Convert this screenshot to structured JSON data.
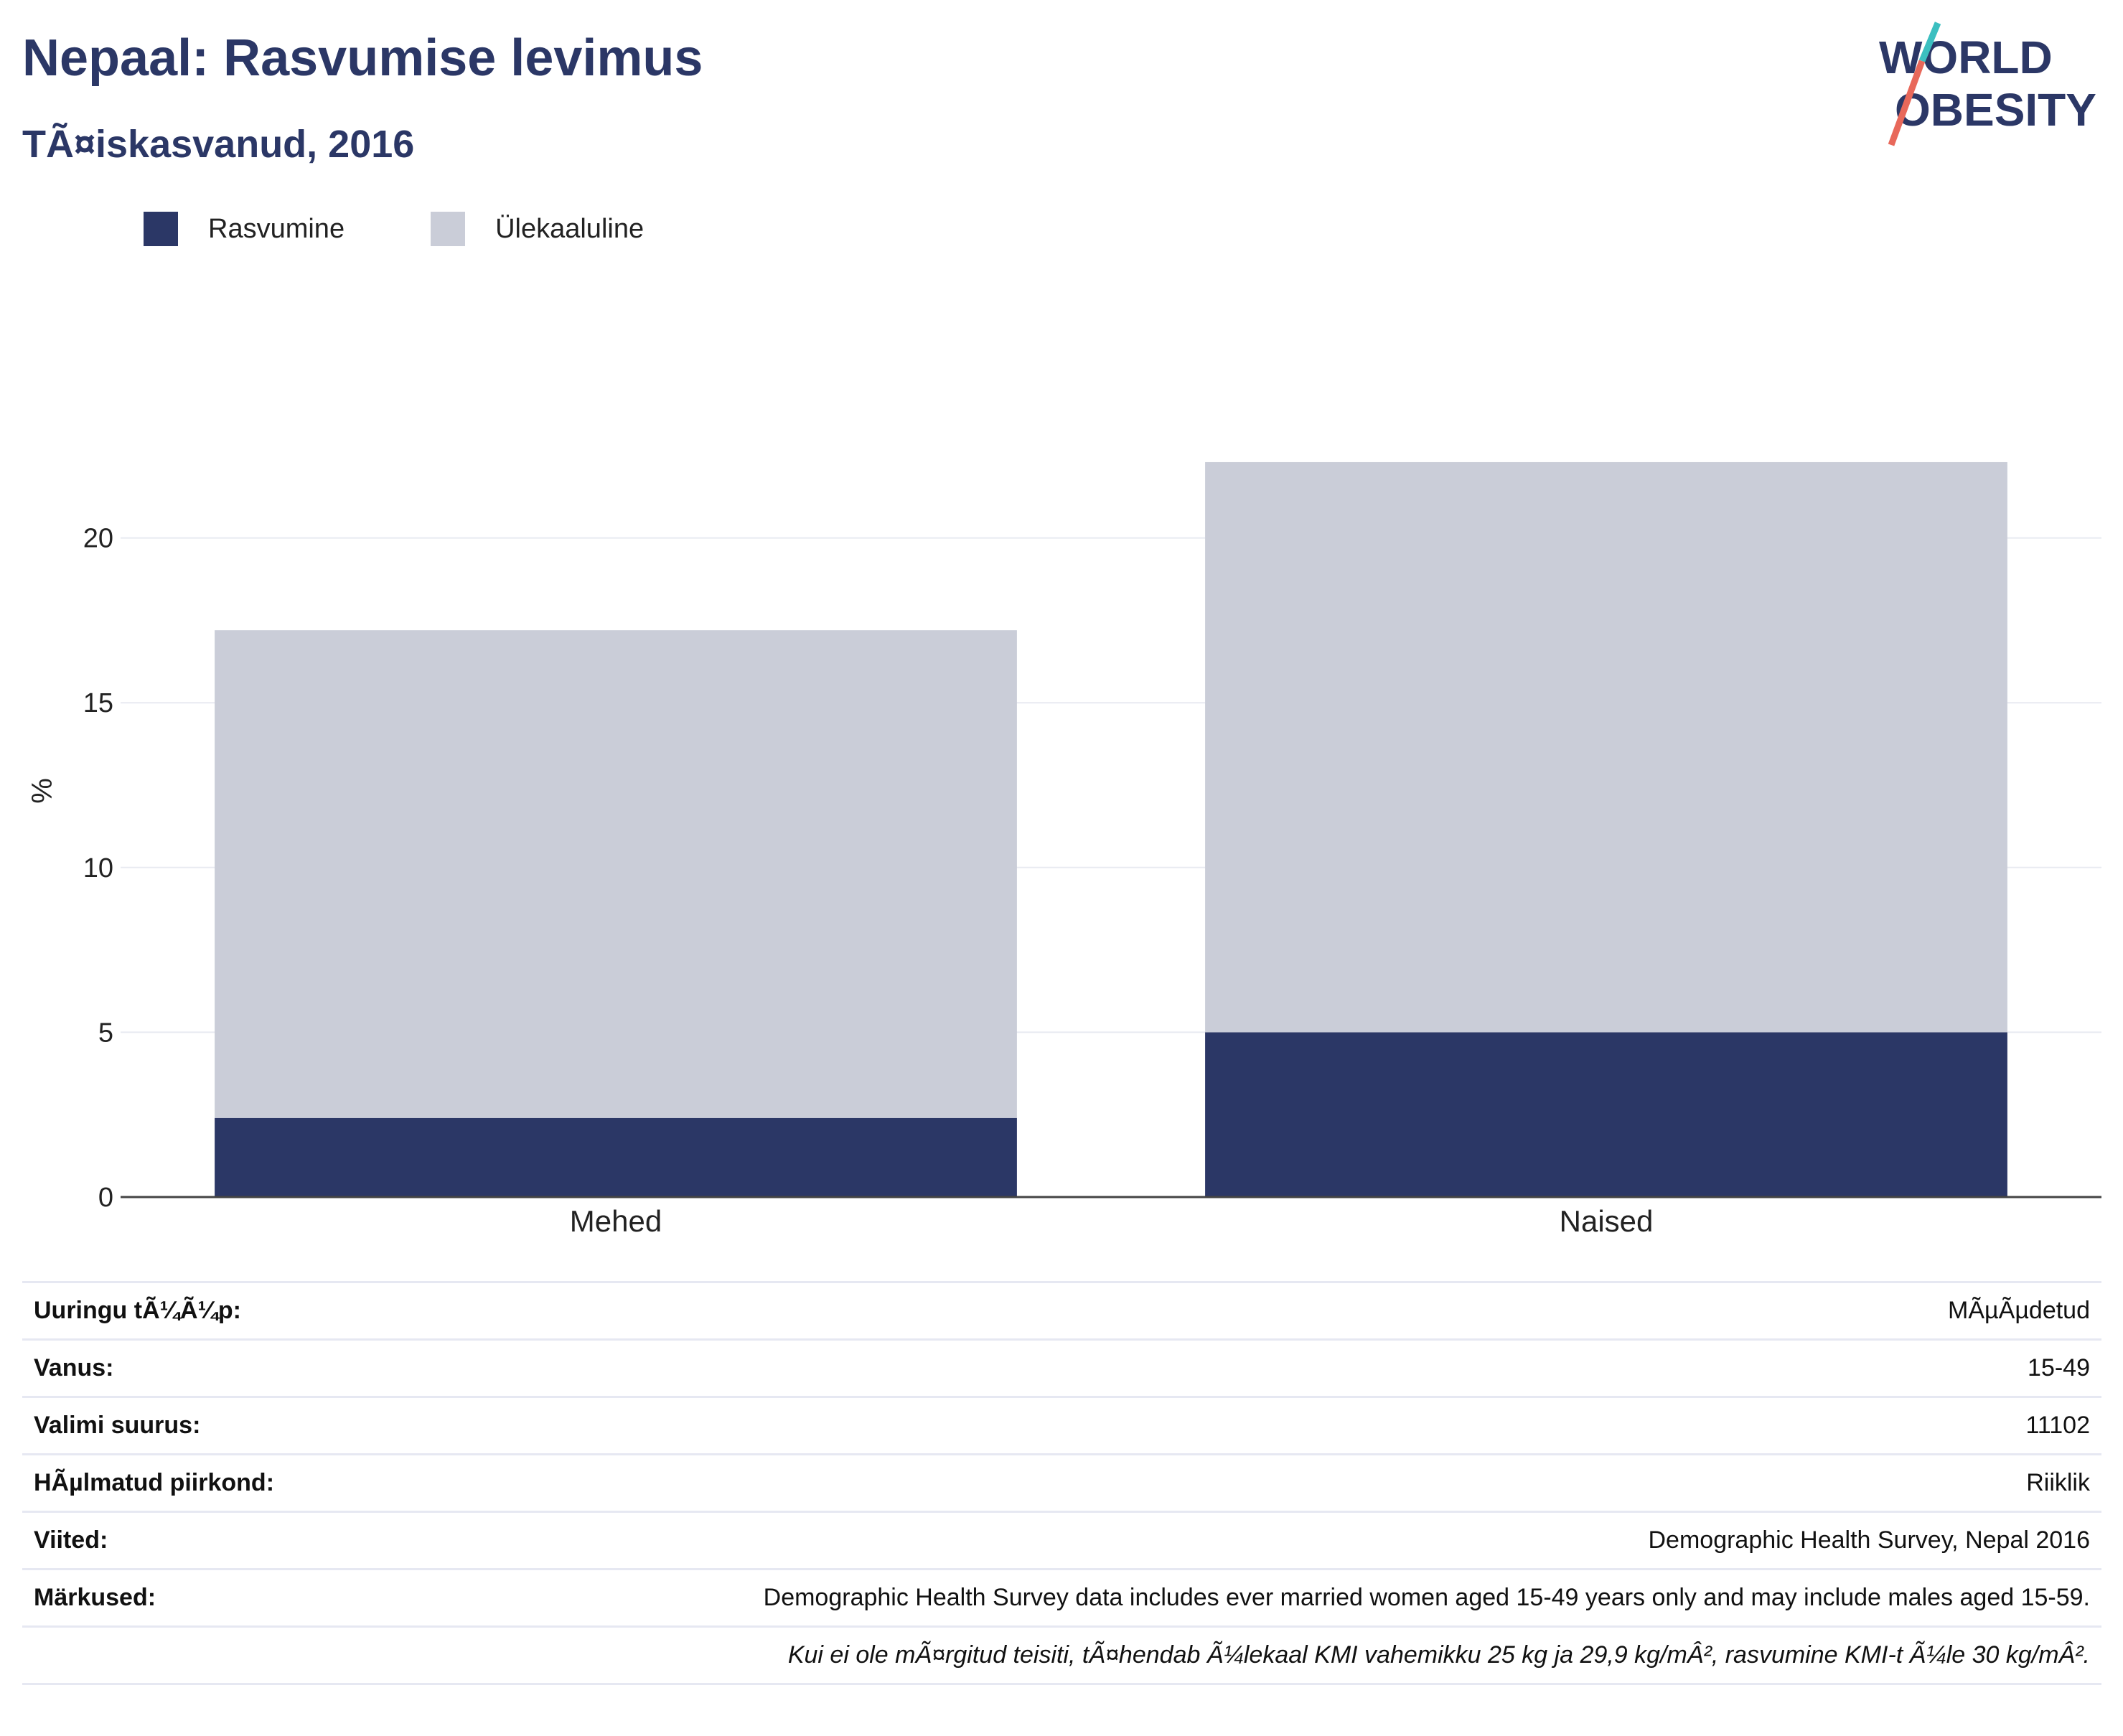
{
  "header": {
    "title": "Nepaal: Rasvumise levimus",
    "subtitle": "TÃ¤iskasvanud, 2016"
  },
  "logo": {
    "line1": "WORLD",
    "line2": "OBESITY",
    "brand_navy": "#2b3766",
    "accent_teal": "#3bbfc0",
    "accent_coral": "#e8685a"
  },
  "legend": [
    {
      "label": "Rasvumine",
      "color": "#2b3766"
    },
    {
      "label": "Ülekaaluline",
      "color": "#cacdd8"
    }
  ],
  "chart_data": {
    "type": "bar",
    "stacked": true,
    "categories": [
      "Mehed",
      "Naised"
    ],
    "series": [
      {
        "name": "Rasvumine",
        "color": "#2b3766",
        "values": [
          2.4,
          5.0
        ]
      },
      {
        "name": "Ülekaaluline",
        "color": "#cacdd8",
        "values": [
          14.8,
          17.3
        ]
      }
    ],
    "title": "Nepaal: Rasvumise levimus",
    "subtitle": "TÃ¤iskasvanud, 2016",
    "xlabel": "",
    "ylabel": "%",
    "ylim": [
      0,
      25
    ],
    "yticks": [
      0,
      5,
      10,
      15,
      20
    ],
    "grid": true,
    "legend_position": "top-left"
  },
  "info": {
    "rows": [
      {
        "label": "Uuringu tÃ¼Ã¼p:",
        "value": "MÃµÃµdetud"
      },
      {
        "label": "Vanus:",
        "value": "15-49"
      },
      {
        "label": "Valimi suurus:",
        "value": "11102"
      },
      {
        "label": "HÃµlmatud piirkond:",
        "value": "Riiklik"
      },
      {
        "label": "Viited:",
        "value": "Demographic Health Survey, Nepal 2016"
      },
      {
        "label": "Märkused:",
        "value": "Demographic Health Survey data includes ever married women aged 15-49 years only and may include males aged 15-59."
      }
    ],
    "note": "Kui ei ole mÃ¤rgitud teisiti, tÃ¤hendab Ã¼lekaal KMI vahemikku 25 kg ja 29,9 kg/mÂ², rasvumine KMI-t Ã¼le 30 kg/mÂ²."
  }
}
